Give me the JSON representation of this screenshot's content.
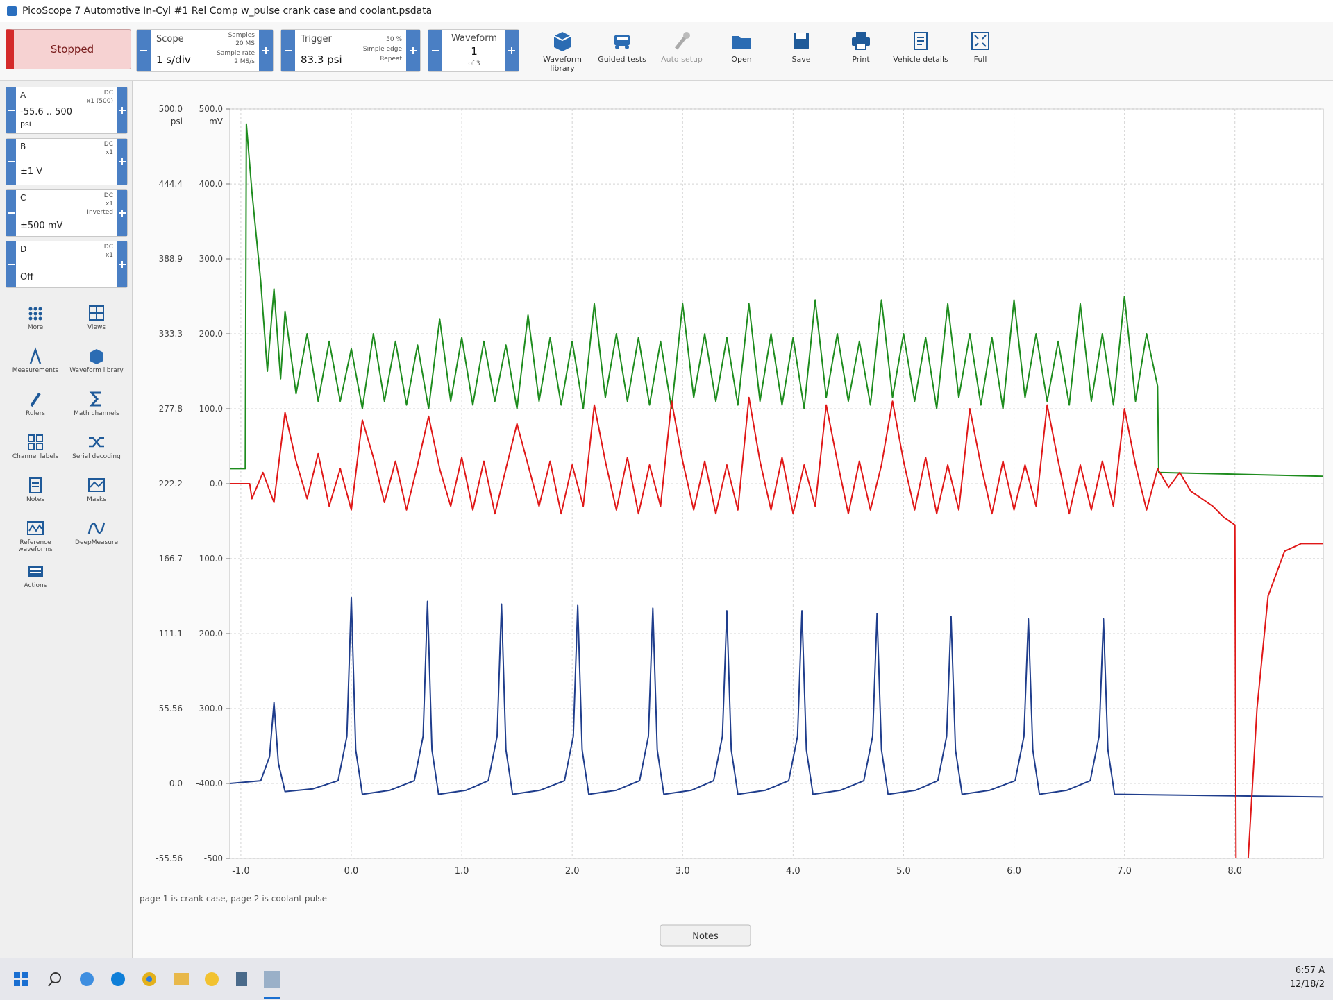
{
  "window": {
    "title": "PicoScope 7 Automotive In-Cyl #1 Rel Comp w_pulse crank case and coolant.psdata"
  },
  "toolbar": {
    "run_state": "Stopped",
    "scope": {
      "label": "Scope",
      "timebase": "1 s/div",
      "samples_label": "Samples",
      "samples": "20 MS",
      "rate_label": "Sample rate",
      "rate": "2 MS/s"
    },
    "trigger": {
      "label": "Trigger",
      "level": "83.3 psi",
      "position": "50 %",
      "mode": "Simple edge",
      "repeat": "Repeat"
    },
    "waveform": {
      "label": "Waveform",
      "index": "1",
      "of": "of 3"
    },
    "buttons": [
      "Waveform library",
      "Guided tests",
      "Auto setup",
      "Open",
      "Save",
      "Print",
      "Vehicle details",
      "Full"
    ]
  },
  "channels": [
    {
      "name": "A",
      "coupling": "DC",
      "probe": "x1 (500)",
      "range": "-55.6 .. 500",
      "unit": "psi"
    },
    {
      "name": "B",
      "coupling": "DC",
      "probe": "x1",
      "range": "±1 V"
    },
    {
      "name": "C",
      "coupling": "DC",
      "probe": "x1",
      "extra": "Inverted",
      "range": "±500 mV"
    },
    {
      "name": "D",
      "coupling": "DC",
      "probe": "x1",
      "range": "Off"
    }
  ],
  "tools": [
    "More",
    "Views",
    "Measurements",
    "Waveform library",
    "Rulers",
    "Math channels",
    "Channel labels",
    "Serial decoding",
    "Notes",
    "Masks",
    "Reference waveforms",
    "DeepMeasure",
    "Actions"
  ],
  "notes": {
    "text": "page 1 is crank case, page 2 is coolant pulse",
    "tab": "Notes"
  },
  "taskbar": {
    "time": "6:57 A",
    "date": "12/18/2"
  },
  "chart_data": {
    "type": "line",
    "y_unit": "psi",
    "y2_unit": "mV",
    "grid": true,
    "xlim": [
      -1.1,
      8.8
    ],
    "xticks": [
      {
        "value": -1,
        "label": "-1.0"
      },
      {
        "value": 0,
        "label": "0.0"
      },
      {
        "value": 1,
        "label": "1.0"
      },
      {
        "value": 2,
        "label": "2.0"
      },
      {
        "value": 3,
        "label": "3.0"
      },
      {
        "value": 4,
        "label": "4.0"
      },
      {
        "value": 5,
        "label": "5.0"
      },
      {
        "value": 6,
        "label": "6.0"
      },
      {
        "value": 7,
        "label": "7.0"
      },
      {
        "value": 8,
        "label": "8.0"
      }
    ],
    "ylim": [
      -55.56,
      500
    ],
    "yticks": [
      -55.56,
      {
        "value": 0,
        "label": "0.0"
      },
      55.56,
      111.1,
      166.7,
      222.2,
      277.8,
      333.3,
      388.9,
      444.4,
      {
        "value": 500,
        "label": "500.0"
      }
    ],
    "y2lim": [
      -500,
      500
    ],
    "y2ticks": [
      -500,
      {
        "value": -400,
        "label": "-400.0"
      },
      {
        "value": -300,
        "label": "-300.0"
      },
      {
        "value": -200,
        "label": "-200.0"
      },
      {
        "value": -100,
        "label": "-100.0"
      },
      {
        "value": 0,
        "label": "0.0"
      },
      {
        "value": 100,
        "label": "100.0"
      },
      {
        "value": 200,
        "label": "200.0"
      },
      {
        "value": 300,
        "label": "300.0"
      },
      {
        "value": 400,
        "label": "400.0"
      },
      {
        "value": 500,
        "label": "500.0"
      }
    ],
    "series": [
      {
        "color": "#1f3d8c",
        "x": [
          -1.1,
          -0.82,
          -0.74,
          -0.7,
          -0.66,
          -0.6,
          -0.35,
          -0.12,
          -0.04,
          0.0,
          0.04,
          0.1,
          0.35,
          0.57,
          0.65,
          0.69,
          0.73,
          0.79,
          1.04,
          1.24,
          1.32,
          1.36,
          1.4,
          1.46,
          1.71,
          1.93,
          2.01,
          2.05,
          2.09,
          2.15,
          2.4,
          2.61,
          2.69,
          2.73,
          2.77,
          2.83,
          3.08,
          3.28,
          3.36,
          3.4,
          3.44,
          3.5,
          3.75,
          3.96,
          4.04,
          4.08,
          4.12,
          4.18,
          4.43,
          4.64,
          4.72,
          4.76,
          4.8,
          4.86,
          5.11,
          5.31,
          5.39,
          5.43,
          5.47,
          5.53,
          5.78,
          6.01,
          6.09,
          6.13,
          6.17,
          6.23,
          6.48,
          6.69,
          6.77,
          6.81,
          6.85,
          6.91,
          8.8
        ],
        "values": [
          0,
          2,
          20,
          60,
          15,
          -6,
          -4,
          2,
          35,
          138,
          25,
          -8,
          -5,
          2,
          35,
          135,
          25,
          -8,
          -5,
          2,
          35,
          133,
          25,
          -8,
          -5,
          2,
          35,
          132,
          25,
          -8,
          -5,
          2,
          35,
          130,
          25,
          -8,
          -5,
          2,
          35,
          128,
          25,
          -8,
          -5,
          2,
          35,
          128,
          25,
          -8,
          -5,
          2,
          35,
          126,
          25,
          -8,
          -5,
          2,
          35,
          124,
          25,
          -8,
          -5,
          2,
          35,
          122,
          25,
          -8,
          -5,
          2,
          35,
          122,
          25,
          -8,
          -10
        ]
      },
      {
        "color": "#1e8c1e",
        "axis": "y2",
        "x": [
          -1.1,
          -0.96,
          -0.95,
          -0.9,
          -0.82,
          -0.76,
          -0.7,
          -0.64,
          -0.6,
          -0.5,
          -0.4,
          -0.3,
          -0.2,
          -0.1,
          0.0,
          0.1,
          0.2,
          0.3,
          0.4,
          0.5,
          0.6,
          0.7,
          0.8,
          0.9,
          1.0,
          1.1,
          1.2,
          1.3,
          1.4,
          1.5,
          1.6,
          1.7,
          1.8,
          1.9,
          2.0,
          2.1,
          2.2,
          2.3,
          2.4,
          2.5,
          2.6,
          2.7,
          2.8,
          2.9,
          3.0,
          3.1,
          3.2,
          3.3,
          3.4,
          3.5,
          3.6,
          3.7,
          3.8,
          3.9,
          4.0,
          4.1,
          4.2,
          4.3,
          4.4,
          4.5,
          4.6,
          4.7,
          4.8,
          4.9,
          5.0,
          5.1,
          5.2,
          5.3,
          5.4,
          5.5,
          5.6,
          5.7,
          5.8,
          5.9,
          6.0,
          6.1,
          6.2,
          6.3,
          6.4,
          6.5,
          6.6,
          6.7,
          6.8,
          6.9,
          7.0,
          7.1,
          7.2,
          7.3,
          7.31,
          8.8
        ],
        "values": [
          20,
          20,
          480,
          390,
          270,
          150,
          260,
          140,
          230,
          120,
          200,
          110,
          190,
          110,
          180,
          100,
          200,
          110,
          190,
          105,
          185,
          100,
          220,
          110,
          195,
          105,
          190,
          110,
          185,
          100,
          225,
          110,
          195,
          105,
          190,
          100,
          240,
          115,
          200,
          110,
          195,
          105,
          190,
          100,
          240,
          115,
          200,
          110,
          195,
          105,
          240,
          110,
          200,
          105,
          195,
          100,
          245,
          115,
          200,
          110,
          190,
          105,
          245,
          115,
          200,
          110,
          195,
          100,
          240,
          115,
          200,
          105,
          195,
          100,
          245,
          115,
          200,
          110,
          190,
          105,
          240,
          110,
          200,
          105,
          250,
          110,
          200,
          130,
          15,
          10
        ]
      },
      {
        "color": "#e01818",
        "axis": "y2",
        "x": [
          -1.1,
          -0.92,
          -0.9,
          -0.8,
          -0.7,
          -0.6,
          -0.5,
          -0.4,
          -0.3,
          -0.2,
          -0.1,
          0.0,
          0.1,
          0.2,
          0.3,
          0.4,
          0.5,
          0.6,
          0.7,
          0.8,
          0.9,
          1.0,
          1.1,
          1.2,
          1.3,
          1.4,
          1.5,
          1.6,
          1.7,
          1.8,
          1.9,
          2.0,
          2.1,
          2.2,
          2.3,
          2.4,
          2.5,
          2.6,
          2.7,
          2.8,
          2.9,
          3.0,
          3.1,
          3.2,
          3.3,
          3.4,
          3.5,
          3.6,
          3.7,
          3.8,
          3.9,
          4.0,
          4.1,
          4.2,
          4.3,
          4.4,
          4.5,
          4.6,
          4.7,
          4.8,
          4.9,
          5.0,
          5.1,
          5.2,
          5.3,
          5.4,
          5.5,
          5.6,
          5.7,
          5.8,
          5.9,
          6.0,
          6.1,
          6.2,
          6.3,
          6.4,
          6.5,
          6.6,
          6.7,
          6.8,
          6.9,
          7.0,
          7.1,
          7.2,
          7.3,
          7.4,
          7.5,
          7.6,
          7.7,
          7.8,
          7.9,
          8.0,
          8.01,
          8.12,
          8.2,
          8.3,
          8.45,
          8.6,
          8.8
        ],
        "values": [
          0,
          0,
          -20,
          15,
          -25,
          95,
          30,
          -20,
          40,
          -30,
          20,
          -35,
          85,
          35,
          -25,
          30,
          -35,
          25,
          90,
          20,
          -30,
          35,
          -35,
          30,
          -40,
          20,
          80,
          25,
          -30,
          30,
          -40,
          25,
          -30,
          105,
          30,
          -35,
          35,
          -40,
          25,
          -30,
          110,
          30,
          -35,
          30,
          -40,
          25,
          -35,
          115,
          30,
          -35,
          35,
          -40,
          25,
          -30,
          105,
          30,
          -40,
          30,
          -35,
          25,
          110,
          30,
          -35,
          35,
          -40,
          25,
          -35,
          100,
          25,
          -40,
          30,
          -35,
          25,
          -30,
          105,
          30,
          -40,
          25,
          -35,
          30,
          -30,
          100,
          25,
          -35,
          20,
          -5,
          15,
          -10,
          -20,
          -30,
          -45,
          -55,
          -500,
          -500,
          -300,
          -150,
          -90,
          -80,
          -80
        ]
      }
    ]
  }
}
